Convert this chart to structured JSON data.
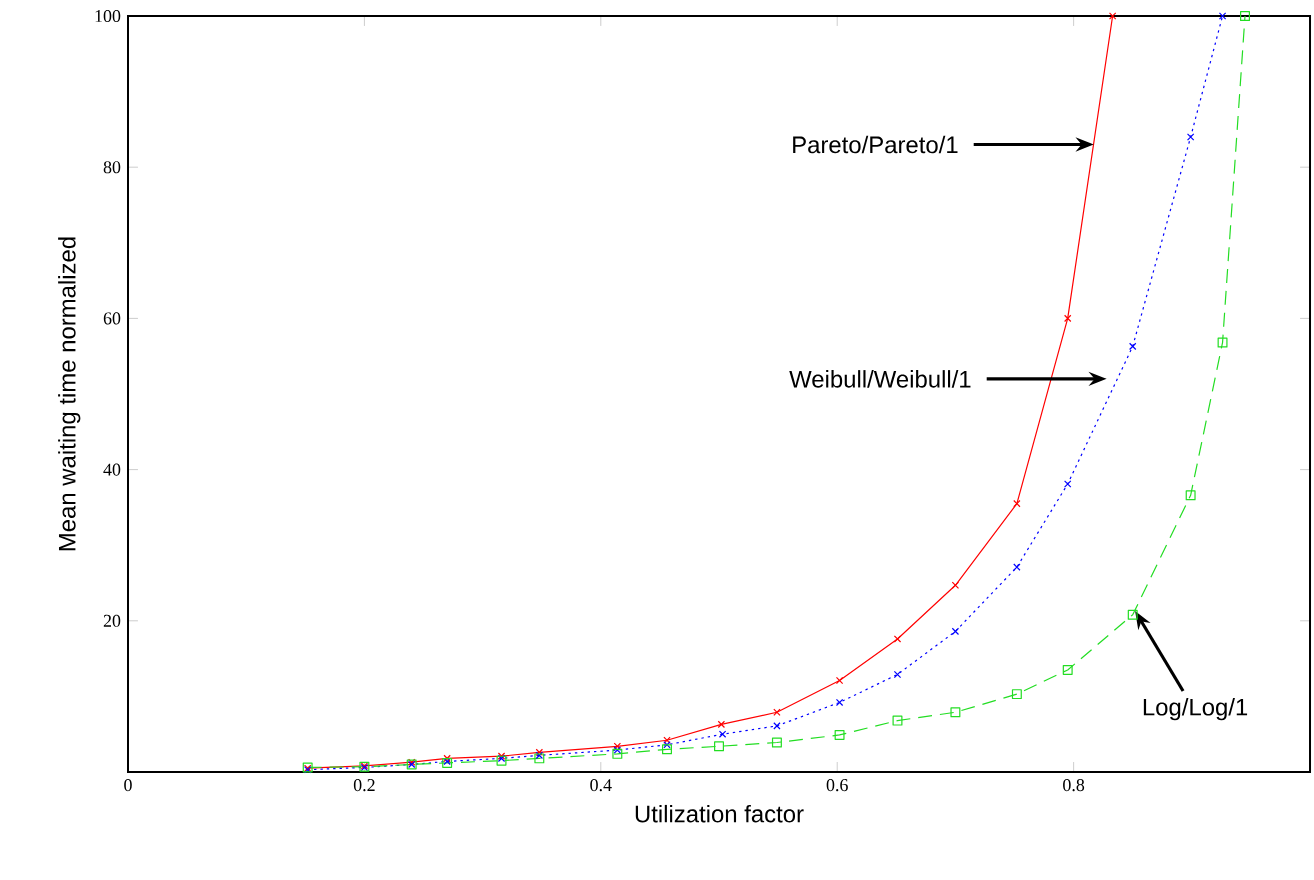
{
  "chart_data": {
    "type": "line",
    "xlabel": "Utilization factor",
    "ylabel": "Mean waiting time normalized",
    "xlim": [
      0,
      1
    ],
    "ylim": [
      0,
      100
    ],
    "xticks": [
      0,
      0.2,
      0.4,
      0.6,
      0.8
    ],
    "yticks": [
      {
        "value": 0,
        "label": null
      },
      20,
      40,
      60,
      80,
      100
    ],
    "series": [
      {
        "color": "#ff0000",
        "marker": "cross",
        "line_style": "solid",
        "x": [
          0.152,
          0.2,
          0.24,
          0.27,
          0.316,
          0.348,
          0.414,
          0.456,
          0.502,
          0.549,
          0.602,
          0.651,
          0.7,
          0.752,
          0.795,
          0.833
        ],
        "values": [
          0.5,
          0.8,
          1.3,
          1.8,
          2.1,
          2.6,
          3.4,
          4.2,
          6.3,
          7.9,
          12.1,
          17.6,
          24.7,
          35.5,
          60,
          100
        ]
      },
      {
        "color": "#0000ff",
        "marker": "cross",
        "line_style": "dotted",
        "x": [
          0.152,
          0.2,
          0.24,
          0.27,
          0.316,
          0.348,
          0.414,
          0.456,
          0.503,
          0.549,
          0.602,
          0.651,
          0.7,
          0.752,
          0.795,
          0.85,
          0.899,
          0.926
        ],
        "values": [
          0.3,
          0.6,
          1.0,
          1.4,
          1.8,
          2.2,
          2.9,
          3.6,
          5.0,
          6.1,
          9.2,
          12.9,
          18.6,
          27.1,
          38.1,
          56.3,
          84,
          100
        ]
      },
      {
        "color": "#22dd22",
        "marker": "square",
        "line_style": "dashed",
        "x": [
          0.152,
          0.2,
          0.24,
          0.27,
          0.316,
          0.348,
          0.414,
          0.456,
          0.5,
          0.549,
          0.602,
          0.651,
          0.7,
          0.752,
          0.795,
          0.85,
          0.899,
          0.926,
          0.945
        ],
        "values": [
          0.6,
          0.7,
          1.0,
          1.2,
          1.5,
          1.8,
          2.4,
          3.0,
          3.4,
          3.9,
          4.9,
          6.8,
          7.9,
          10.3,
          13.5,
          20.8,
          36.6,
          56.8,
          100
        ]
      }
    ],
    "annotations": [
      {
        "text": "Pareto/Pareto/1",
        "x": 0.817,
        "y": 83
      },
      {
        "text": "Weibull/Weibull/1",
        "x": 0.828,
        "y": 52
      },
      {
        "text": "Log/Log/1",
        "x": 0.852,
        "y": 21.3
      }
    ]
  }
}
